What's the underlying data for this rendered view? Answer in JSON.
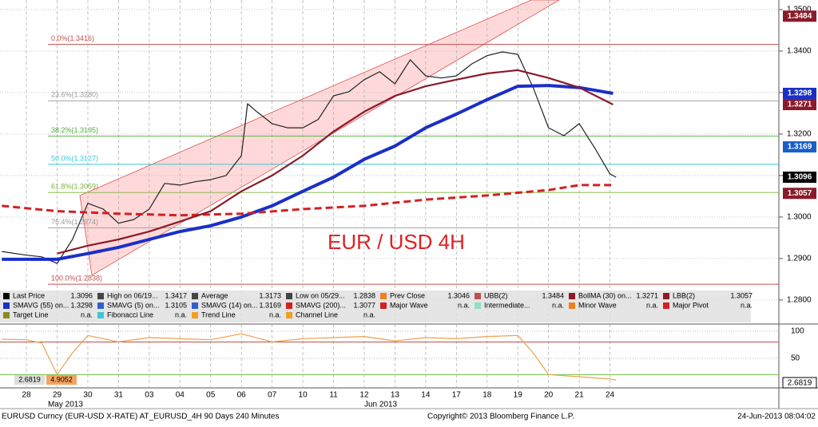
{
  "chart_data": {
    "type": "line",
    "annotation": "EUR / USD 4H",
    "xlim": [
      -0.86,
      24.5
    ],
    "xticks": [
      {
        "value": 0,
        "label": "28"
      },
      {
        "value": 1,
        "label": "29"
      },
      {
        "value": 2,
        "label": "30"
      },
      {
        "value": 3,
        "label": "31"
      },
      {
        "value": 4,
        "label": "03"
      },
      {
        "value": 5,
        "label": "04"
      },
      {
        "value": 6,
        "label": "05"
      },
      {
        "value": 7,
        "label": "06"
      },
      {
        "value": 8,
        "label": "07"
      },
      {
        "value": 9,
        "label": "10"
      },
      {
        "value": 10,
        "label": "11"
      },
      {
        "value": 11,
        "label": "12"
      },
      {
        "value": 12,
        "label": "13"
      },
      {
        "value": 13,
        "label": "14"
      },
      {
        "value": 14,
        "label": "17"
      },
      {
        "value": 15,
        "label": "18"
      },
      {
        "value": 16,
        "label": "19"
      },
      {
        "value": 17,
        "label": "20"
      },
      {
        "value": 18,
        "label": "21"
      },
      {
        "value": 19,
        "label": "24"
      }
    ],
    "month_labels": [
      {
        "value": 0.7,
        "label": "May 2013"
      },
      {
        "value": 11,
        "label": "Jun 2013"
      }
    ],
    "ylim": [
      1.2744,
      1.3523
    ],
    "yticks": [
      {
        "value": 1.28,
        "label": "1.2800"
      },
      {
        "value": 1.29,
        "label": "1.2900"
      },
      {
        "value": 1.3,
        "label": "1.3000"
      },
      {
        "value": 1.31,
        "label": "1.3100"
      },
      {
        "value": 1.32,
        "label": "1.3200"
      },
      {
        "value": 1.33,
        "label": "1.3300"
      },
      {
        "value": 1.34,
        "label": "1.3400"
      },
      {
        "value": 1.35,
        "label": "1.3500"
      }
    ],
    "grid": true,
    "series": [
      {
        "color": "#222222",
        "width": 1.2,
        "dash": false,
        "x": [
          -0.8,
          0,
          0.5,
          1,
          1.5,
          2,
          2.5,
          3,
          3.5,
          4,
          4.5,
          5,
          5.5,
          6,
          6.5,
          7,
          7.2,
          7.5,
          8,
          8.5,
          9,
          9.5,
          10,
          10.5,
          11,
          11.5,
          12,
          12.5,
          13,
          13.5,
          14,
          14.5,
          15,
          15.5,
          16,
          16.5,
          17,
          17.5,
          18,
          18.5,
          19,
          19.2
        ],
        "values": [
          1.2917,
          1.2908,
          1.2904,
          1.2888,
          1.2946,
          1.3033,
          1.3019,
          1.2985,
          1.2994,
          1.3019,
          1.3081,
          1.3077,
          1.3085,
          1.309,
          1.31,
          1.3148,
          1.3273,
          1.3254,
          1.3225,
          1.3215,
          1.3215,
          1.3235,
          1.3292,
          1.3302,
          1.3331,
          1.335,
          1.3321,
          1.3379,
          1.334,
          1.3335,
          1.334,
          1.3369,
          1.3389,
          1.3398,
          1.3392,
          1.3312,
          1.3215,
          1.3196,
          1.3225,
          1.3167,
          1.3104,
          1.3096
        ]
      },
      {
        "color": "#1a2fc8",
        "width": 4,
        "dash": false,
        "x": [
          -0.8,
          1,
          2,
          3,
          4,
          5,
          6,
          7,
          8,
          9,
          10,
          11,
          12,
          13,
          14,
          15,
          16,
          17,
          18,
          19.1
        ],
        "values": [
          1.2898,
          1.2898,
          1.2912,
          1.2927,
          1.2946,
          1.2965,
          1.2979,
          1.3,
          1.3027,
          1.3062,
          1.3096,
          1.3139,
          1.3171,
          1.3215,
          1.3248,
          1.3283,
          1.3315,
          1.3317,
          1.3312,
          1.3298
        ]
      },
      {
        "color": "#d42020",
        "width": 3,
        "dash": true,
        "x": [
          -0.8,
          1,
          3,
          5,
          7,
          9,
          11,
          13,
          15,
          17,
          18,
          19.1
        ],
        "values": [
          1.3027,
          1.3014,
          1.3008,
          1.3004,
          1.3008,
          1.3019,
          1.3027,
          1.3042,
          1.3052,
          1.3065,
          1.3077,
          1.3077
        ]
      },
      {
        "color": "#8b1a2a",
        "width": 2.2,
        "dash": false,
        "x": [
          1,
          2,
          3,
          4,
          5,
          6,
          7,
          8,
          9,
          10,
          11,
          12,
          13,
          14,
          15,
          16,
          17,
          18,
          19.1
        ],
        "values": [
          1.2912,
          1.2931,
          1.2946,
          1.2965,
          1.2989,
          1.3014,
          1.3062,
          1.31,
          1.3148,
          1.3206,
          1.3254,
          1.3292,
          1.3315,
          1.3331,
          1.3346,
          1.3354,
          1.3335,
          1.3312,
          1.3271
        ]
      }
    ],
    "fib_levels": [
      {
        "value": 1.3416,
        "label": "0.0%(1.3416)",
        "color": "#c0504d"
      },
      {
        "value": 1.328,
        "label": "23.6%(1.3280)",
        "color": "#999999"
      },
      {
        "value": 1.3195,
        "label": "38.2%(1.3195)",
        "color": "#4caf3a"
      },
      {
        "value": 1.3127,
        "label": "50.0%(1.3127)",
        "color": "#3cc6d8"
      },
      {
        "value": 1.3059,
        "label": "61.8%(1.3059)",
        "color": "#7cb33a"
      },
      {
        "value": 1.2974,
        "label": "76.4%(1.2974)",
        "color": "#999999"
      },
      {
        "value": 1.2838,
        "label": "100.0%(1.2838)",
        "color": "#c0504d"
      }
    ],
    "price_tags": [
      {
        "value": 1.3484,
        "label": "1.3484",
        "color": "#8b1a2a"
      },
      {
        "value": 1.3298,
        "label": "1.3298",
        "color": "#1a2fc8"
      },
      {
        "value": 1.3271,
        "label": "1.3271",
        "color": "#8b1a2a"
      },
      {
        "value": 1.3169,
        "label": "1.3169",
        "color": "#1a5fc8"
      },
      {
        "value": 1.3096,
        "label": "1.3096",
        "color": "#000000"
      },
      {
        "value": 1.3057,
        "label": "1.3057",
        "color": "#8b1a2a"
      }
    ],
    "legend": [
      [
        {
          "label": "Last Price",
          "value": "1.3096",
          "color": "#000000"
        },
        {
          "label": "High on 06/19...",
          "value": "1.3417",
          "color": "#444444"
        },
        {
          "label": "Average",
          "value": "1.3173",
          "color": "#444444"
        },
        {
          "label": "Low on 05/29...",
          "value": "1.2838",
          "color": "#444444"
        },
        {
          "label": "Prev Close",
          "value": "1.3046",
          "color": "#f07f20"
        },
        {
          "label": "UBB(2)",
          "value": "1.3484",
          "color": "#c0504d"
        },
        {
          "label": "BollMA (30) on...",
          "value": "1.3271",
          "color": "#8b1a2a"
        },
        {
          "label": "LBB(2)",
          "value": "1.3057",
          "color": "#8b1a2a"
        }
      ],
      [
        {
          "label": "SMAVG (55) on...",
          "value": "1.3298",
          "color": "#1a2fc8"
        },
        {
          "label": "SMAVG (5) on...",
          "value": "1.3105",
          "color": "#3060d0"
        },
        {
          "label": "SMAVG (14) on...",
          "value": "1.3169",
          "color": "#3060d0"
        },
        {
          "label": "SMAVG (200)...",
          "value": "1.3077",
          "color": "#d42020"
        },
        {
          "label": "Major Wave",
          "value": "n.a.",
          "color": "#d42020"
        },
        {
          "label": "Intermediate...",
          "value": "n.a.",
          "color": "#8fe0c0"
        },
        {
          "label": "Minor Wave",
          "value": "n.a.",
          "color": "#f07f20"
        },
        {
          "label": "Major Pivot",
          "value": "n.a.",
          "color": "#d42020"
        }
      ],
      [
        {
          "label": "Target Line",
          "value": "n.a.",
          "color": "#8a8a20"
        },
        {
          "label": "Fibonacci Line",
          "value": "n.a.",
          "color": "#3cc6d8"
        },
        {
          "label": "Trend Line",
          "value": "n.a.",
          "color": "#f0a020"
        },
        {
          "label": "Channel Line",
          "value": "n.a.",
          "color": "#f0a020"
        }
      ]
    ],
    "lower_panel": {
      "type": "line",
      "ylim": [
        -3,
        110
      ],
      "yticks": [
        50,
        100
      ],
      "ref_lines": [
        {
          "value": 80,
          "color": "#c0504d"
        },
        {
          "value": 20,
          "color": "#6fbf3f"
        }
      ],
      "series": [
        {
          "color": "#f0a050",
          "width": 1.2,
          "dash": false,
          "x": [
            -0.8,
            0,
            0.5,
            1,
            1.5,
            2,
            3,
            4,
            5,
            6,
            7,
            8,
            9,
            10,
            11,
            12,
            13,
            14,
            15,
            16,
            16.5,
            17,
            18,
            19,
            19.2
          ],
          "values": [
            85,
            84,
            78,
            20,
            60,
            92,
            80,
            88,
            86,
            84,
            95,
            80,
            86,
            88,
            90,
            82,
            88,
            86,
            90,
            92,
            60,
            20,
            16,
            12,
            10
          ]
        }
      ],
      "corner_values": [
        {
          "label": "2.6819",
          "color": "#dddddd"
        },
        {
          "label": "4.9052",
          "color": "#f4a460"
        }
      ],
      "last_tag": "2.6819"
    },
    "footer": {
      "source": "EURUSD Curncy (EUR-USD X-RATE) AT_EURUSD_4H 90 Days 240 Minutes",
      "copyright": "Copyright© 2013 Bloomberg Finance L.P.",
      "timestamp": "24-Jun-2013 08:04:02"
    }
  }
}
